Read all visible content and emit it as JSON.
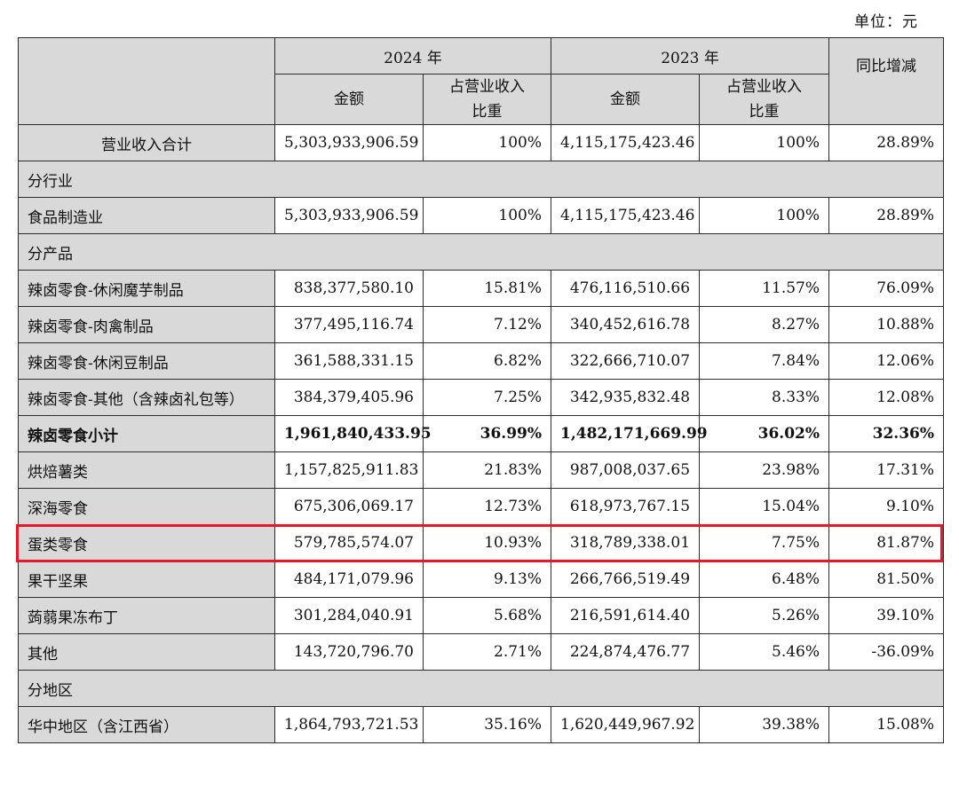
{
  "unit_label": "单位：元",
  "header": {
    "year_2024": "2024 年",
    "year_2023": "2023 年",
    "amount": "金额",
    "share_line1": "占营业收入",
    "share_line2": "比重",
    "yoy": "同比增减"
  },
  "rows": [
    {
      "label": "营业收入合计",
      "a24": "5,303,933,906.59",
      "p24": "100%",
      "a23": "4,115,175,423.46",
      "p23": "100%",
      "yoy": "28.89%"
    },
    {
      "section": "分行业"
    },
    {
      "label": "食品制造业",
      "a24": "5,303,933,906.59",
      "p24": "100%",
      "a23": "4,115,175,423.46",
      "p23": "100%",
      "yoy": "28.89%"
    },
    {
      "section": "分产品"
    },
    {
      "label": "辣卤零食-休闲魔芋制品",
      "a24": "838,377,580.10",
      "p24": "15.81%",
      "a23": "476,116,510.66",
      "p23": "11.57%",
      "yoy": "76.09%"
    },
    {
      "label": "辣卤零食-肉禽制品",
      "a24": "377,495,116.74",
      "p24": "7.12%",
      "a23": "340,452,616.78",
      "p23": "8.27%",
      "yoy": "10.88%"
    },
    {
      "label": "辣卤零食-休闲豆制品",
      "a24": "361,588,331.15",
      "p24": "6.82%",
      "a23": "322,666,710.07",
      "p23": "7.84%",
      "yoy": "12.06%"
    },
    {
      "label": "辣卤零食-其他（含辣卤礼包等）",
      "a24": "384,379,405.96",
      "p24": "7.25%",
      "a23": "342,935,832.48",
      "p23": "8.33%",
      "yoy": "12.08%"
    },
    {
      "label": "辣卤零食小计",
      "a24": "1,961,840,433.95",
      "p24": "36.99%",
      "a23": "1,482,171,669.99",
      "p23": "36.02%",
      "yoy": "32.36%",
      "bold": true
    },
    {
      "label": "烘焙薯类",
      "a24": "1,157,825,911.83",
      "p24": "21.83%",
      "a23": "987,008,037.65",
      "p23": "23.98%",
      "yoy": "17.31%"
    },
    {
      "label": "深海零食",
      "a24": "675,306,069.17",
      "p24": "12.73%",
      "a23": "618,973,767.15",
      "p23": "15.04%",
      "yoy": "9.10%"
    },
    {
      "label": "蛋类零食",
      "a24": "579,785,574.07",
      "p24": "10.93%",
      "a23": "318,789,338.01",
      "p23": "7.75%",
      "yoy": "81.87%",
      "highlighted": true
    },
    {
      "label": "果干坚果",
      "a24": "484,171,079.96",
      "p24": "9.13%",
      "a23": "266,766,519.49",
      "p23": "6.48%",
      "yoy": "81.50%"
    },
    {
      "label": "蒟蒻果冻布丁",
      "a24": "301,284,040.91",
      "p24": "5.68%",
      "a23": "216,591,614.40",
      "p23": "5.26%",
      "yoy": "39.10%"
    },
    {
      "label": "其他",
      "a24": "143,720,796.70",
      "p24": "2.71%",
      "a23": "224,874,476.77",
      "p23": "5.46%",
      "yoy": "-36.09%"
    },
    {
      "section": "分地区"
    },
    {
      "label": "华中地区（含江西省）",
      "a24": "1,864,793,721.53",
      "p24": "35.16%",
      "a23": "1,620,449,967.92",
      "p23": "39.38%",
      "yoy": "15.08%"
    }
  ],
  "colors": {
    "header_gray": "#d9d9d9",
    "highlight_red": "#e8172a",
    "border": "#2b2b2b"
  }
}
